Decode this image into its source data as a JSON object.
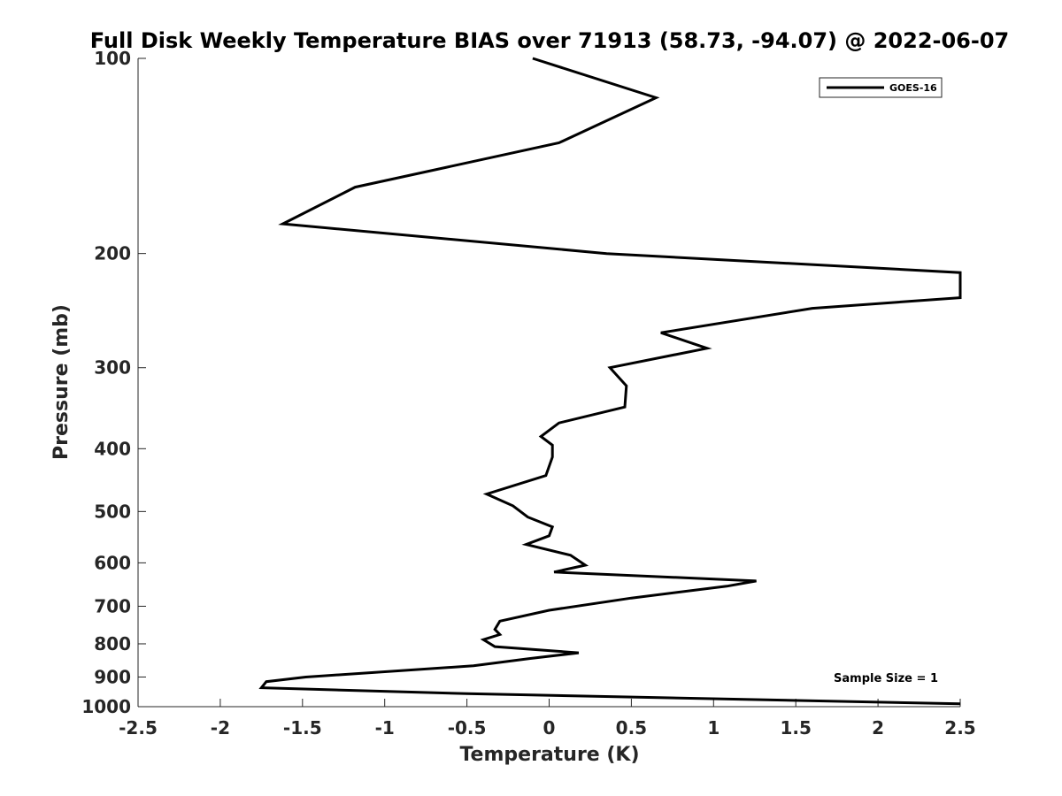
{
  "chart_data": {
    "type": "line",
    "title": "Full Disk Weekly Temperature BIAS over 71913 (58.73, -94.07) @ 2022-06-07",
    "xlabel": "Temperature (K)",
    "ylabel": "Pressure (mb)",
    "xlim": [
      -2.5,
      2.5
    ],
    "ylim": [
      100,
      1000
    ],
    "y_scale": "log",
    "y_reversed": true,
    "x_ticks": [
      "-2.5",
      "-2",
      "-1.5",
      "-1",
      "-0.5",
      "0",
      "0.5",
      "1",
      "1.5",
      "2",
      "2.5"
    ],
    "y_ticks": [
      "100",
      "200",
      "300",
      "400",
      "500",
      "600",
      "700",
      "800",
      "900",
      "1000"
    ],
    "grid": false,
    "legend_position": "top-right",
    "annotation": "Sample Size = 1",
    "series": [
      {
        "name": "GOES-16",
        "color": "#000000",
        "points": [
          [
            -0.1,
            100
          ],
          [
            0.65,
            115
          ],
          [
            0.06,
            135
          ],
          [
            -1.18,
            158
          ],
          [
            -1.62,
            180
          ],
          [
            0.35,
            200
          ],
          [
            2.5,
            214
          ],
          [
            2.5,
            234
          ],
          [
            1.6,
            243
          ],
          [
            0.68,
            265
          ],
          [
            0.96,
            280
          ],
          [
            0.37,
            300
          ],
          [
            0.47,
            320
          ],
          [
            0.46,
            345
          ],
          [
            0.06,
            365
          ],
          [
            -0.05,
            383
          ],
          [
            0.02,
            395
          ],
          [
            0.02,
            412
          ],
          [
            -0.02,
            440
          ],
          [
            -0.38,
            470
          ],
          [
            -0.22,
            490
          ],
          [
            -0.13,
            510
          ],
          [
            0.02,
            528
          ],
          [
            0.0,
            545
          ],
          [
            -0.14,
            562
          ],
          [
            0.13,
            584
          ],
          [
            0.22,
            605
          ],
          [
            0.03,
            620
          ],
          [
            1.26,
            640
          ],
          [
            1.08,
            652
          ],
          [
            0.5,
            680
          ],
          [
            0.0,
            710
          ],
          [
            -0.3,
            738
          ],
          [
            -0.33,
            760
          ],
          [
            -0.3,
            774
          ],
          [
            -0.4,
            788
          ],
          [
            -0.33,
            808
          ],
          [
            0.18,
            826
          ],
          [
            -0.12,
            843
          ],
          [
            -0.46,
            865
          ],
          [
            -1.48,
            900
          ],
          [
            -1.72,
            915
          ],
          [
            -1.75,
            935
          ],
          [
            -0.5,
            955
          ],
          [
            2.5,
            990
          ]
        ]
      }
    ]
  }
}
